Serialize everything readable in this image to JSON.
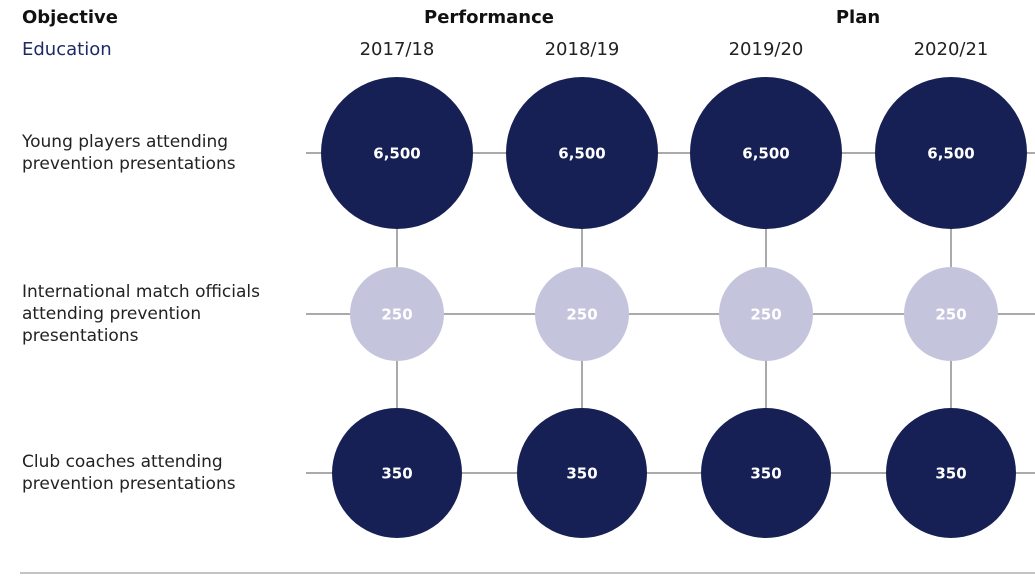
{
  "chart_data": {
    "type": "bubble",
    "header": {
      "objective": "Objective",
      "performance": "Performance",
      "plan": "Plan"
    },
    "subtitle": "Education",
    "categories": [
      "2017/18",
      "2018/19",
      "2019/20",
      "2020/21"
    ],
    "series": [
      {
        "name": [
          "Young players attending",
          "prevention presentations"
        ],
        "color": "#162054",
        "values": [
          6500,
          6500,
          6500,
          6500
        ],
        "value_labels": [
          "6,500",
          "6,500",
          "6,500",
          "6,500"
        ]
      },
      {
        "name": [
          "International match officials",
          "attending prevention",
          "presentations"
        ],
        "color": "#c4c5dc",
        "values": [
          250,
          250,
          250,
          250
        ]
      },
      {
        "name": [
          "Club coaches attending",
          "prevention presentations"
        ],
        "color": "#162054",
        "values": [
          350,
          350,
          350,
          350
        ]
      }
    ]
  }
}
